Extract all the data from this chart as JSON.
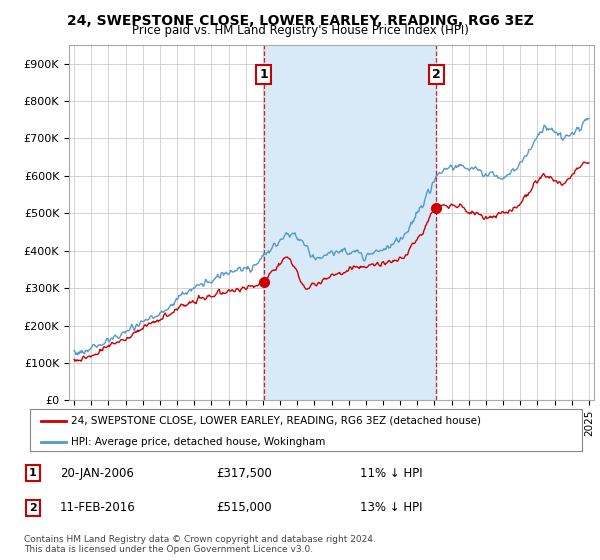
{
  "title": "24, SWEPSTONE CLOSE, LOWER EARLEY, READING, RG6 3EZ",
  "subtitle": "Price paid vs. HM Land Registry's House Price Index (HPI)",
  "ylabel_ticks": [
    "£0",
    "£100K",
    "£200K",
    "£300K",
    "£400K",
    "£500K",
    "£600K",
    "£700K",
    "£800K",
    "£900K"
  ],
  "ytick_vals": [
    0,
    100000,
    200000,
    300000,
    400000,
    500000,
    600000,
    700000,
    800000,
    900000
  ],
  "ylim": [
    0,
    950000
  ],
  "xlim_start": 1994.7,
  "xlim_end": 2025.3,
  "sale1": {
    "date_x": 2006.05,
    "price": 317500,
    "label": "1",
    "date_str": "20-JAN-2006",
    "price_str": "£317,500",
    "pct_str": "11% ↓ HPI"
  },
  "sale2": {
    "date_x": 2016.11,
    "price": 515000,
    "label": "2",
    "date_str": "11-FEB-2016",
    "price_str": "£515,000",
    "pct_str": "13% ↓ HPI"
  },
  "legend_line1": "24, SWEPSTONE CLOSE, LOWER EARLEY, READING, RG6 3EZ (detached house)",
  "legend_line2": "HPI: Average price, detached house, Wokingham",
  "footer1": "Contains HM Land Registry data © Crown copyright and database right 2024.",
  "footer2": "This data is licensed under the Open Government Licence v3.0.",
  "red_color": "#cc0000",
  "blue_color": "#5599cc",
  "shade_color": "#d8eaf7",
  "grid_color": "#cccccc",
  "background_color": "#ffffff"
}
